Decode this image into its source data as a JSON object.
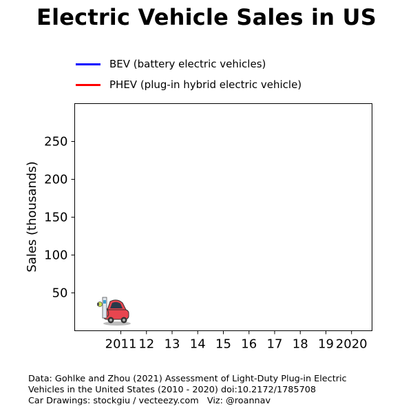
{
  "chart_data": {
    "type": "line",
    "title": "Electric Vehicle Sales in US",
    "xlabel": "",
    "ylabel": "Sales (thousands)",
    "x_tick_labels": [
      "2011",
      "12",
      "13",
      "14",
      "15",
      "16",
      "17",
      "18",
      "19",
      "2020"
    ],
    "x_tick_values": [
      2011,
      2012,
      2013,
      2014,
      2015,
      2016,
      2017,
      2018,
      2019,
      2020
    ],
    "y_ticks": [
      50,
      100,
      150,
      200,
      250
    ],
    "xlim": [
      2009.2,
      2020.8
    ],
    "ylim": [
      0,
      300
    ],
    "legend_position": "top-left",
    "series": [
      {
        "name": "BEV (battery electric vehicles)",
        "color": "#0000ff",
        "x": [],
        "values": []
      },
      {
        "name": "PHEV (plug-in hybrid electric vehicle)",
        "color": "#ff0000",
        "x": [],
        "values": []
      }
    ],
    "annotation_icon": "electric-car-icon",
    "annotation_at": {
      "x": 2010.5,
      "y": 20
    }
  },
  "footer": {
    "line1": "Data: Gohlke and Zhou (2021) Assessment of Light-Duty Plug-in Electric",
    "line2": "Vehicles in the United States (2010 - 2020) doi:10.2172/1785708",
    "line3": "Car Drawings: stockgiu / vecteezy.com   Viz: @roannav"
  }
}
